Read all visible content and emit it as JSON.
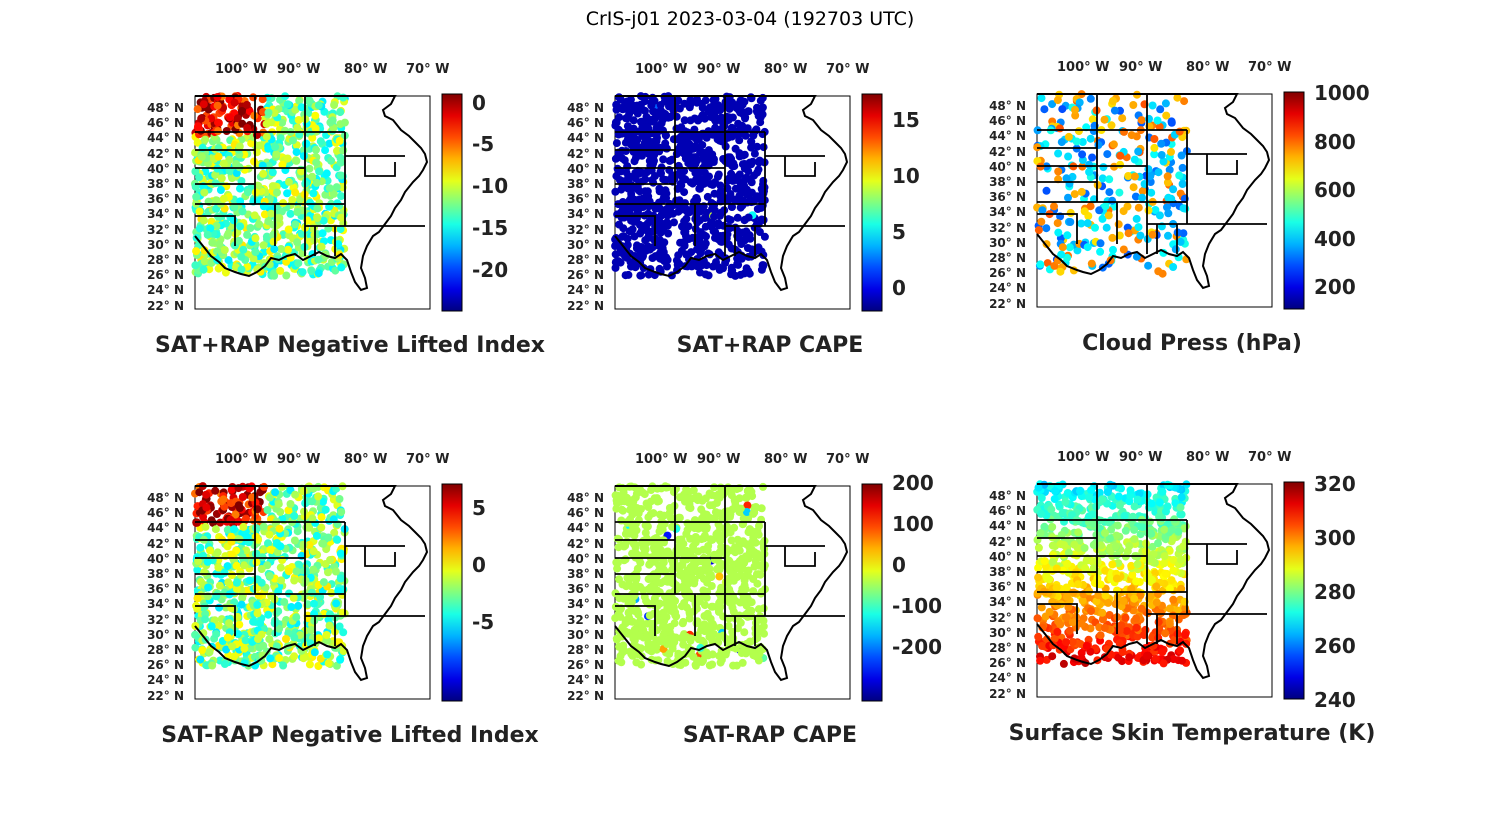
{
  "title": "CrIS-j01 2023-03-04 (192703 UTC)",
  "lon_labels": [
    "100° W",
    "90° W",
    "80° W",
    "70° W"
  ],
  "lat_labels": [
    "48° N",
    "46° N",
    "44° N",
    "42° N",
    "40° N",
    "38° N",
    "36° N",
    "34° N",
    "32° N",
    "30° N",
    "28° N",
    "26° N",
    "24° N",
    "22° N"
  ],
  "colormap": "jet",
  "panels": [
    {
      "title": "SAT+RAP Negative Lifted Index",
      "colorbar_ticks": [
        "0",
        "-5",
        "-10",
        "-15",
        "-20"
      ],
      "dominant_field": "mixed",
      "range": [
        -22,
        4
      ]
    },
    {
      "title": "SAT+RAP CAPE",
      "colorbar_ticks": [
        "15",
        "10",
        "5",
        "0"
      ],
      "dominant_field": "uniform-low",
      "range": [
        0,
        19
      ]
    },
    {
      "title": "Cloud Press (hPa)",
      "colorbar_ticks": [
        "1000",
        "800",
        "600",
        "400",
        "200"
      ],
      "dominant_field": "scattered",
      "range": [
        100,
        1000
      ]
    },
    {
      "title": "SAT-RAP Negative Lifted Index",
      "colorbar_ticks": [
        "5",
        "0",
        "-5"
      ],
      "dominant_field": "mixed",
      "range": [
        -9,
        9
      ]
    },
    {
      "title": "SAT-RAP CAPE",
      "colorbar_ticks": [
        "200",
        "100",
        "0",
        "-100",
        "-200"
      ],
      "dominant_field": "uniform-mid",
      "range": [
        -260,
        260
      ]
    },
    {
      "title": "Surface Skin Temperature (K)",
      "colorbar_ticks": [
        "320",
        "300",
        "280",
        "260",
        "240"
      ],
      "dominant_field": "gradient",
      "range": [
        240,
        320
      ]
    }
  ]
}
